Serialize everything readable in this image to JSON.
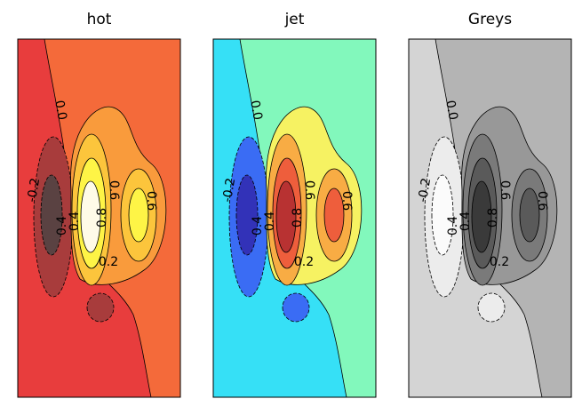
{
  "chart_data": [
    {
      "type": "contour",
      "title": "hot",
      "levels": [
        -0.6,
        -0.4,
        -0.2,
        0,
        0.2,
        0.4,
        0.6,
        0.8,
        1.0
      ],
      "colors": [
        "#5a4242",
        "#a83c3c",
        "#e83d3d",
        "#f46a3a",
        "#f99b3c",
        "#fcc53c",
        "#fef446",
        "#fffbe8"
      ],
      "contour_labels": [
        {
          "value": 0,
          "label": "0.0"
        },
        {
          "value": -0.2,
          "label": "-0.2"
        },
        {
          "value": 0.4,
          "label": "0.4"
        },
        {
          "value": 0.4,
          "label": "0.4"
        },
        {
          "value": 0.8,
          "label": "0.8"
        },
        {
          "value": 0.6,
          "label": "0.6"
        },
        {
          "value": 0.6,
          "label": "0.6"
        },
        {
          "value": 0.2,
          "label": "0.2"
        }
      ]
    },
    {
      "type": "contour",
      "title": "jet",
      "levels": [
        -0.6,
        -0.4,
        -0.2,
        0,
        0.2,
        0.4,
        0.6,
        0.8,
        1.0
      ],
      "colors": [
        "#3232b8",
        "#3a6cf4",
        "#36e0f6",
        "#82f8bc",
        "#f6f262",
        "#f8ac44",
        "#ee5e3c",
        "#b83232"
      ],
      "contour_labels": [
        {
          "value": 0,
          "label": "0.0"
        },
        {
          "value": -0.2,
          "label": "-0.2"
        },
        {
          "value": 0.4,
          "label": "0.4"
        },
        {
          "value": 0.4,
          "label": "0.4"
        },
        {
          "value": 0.8,
          "label": "0.8"
        },
        {
          "value": 0.6,
          "label": "0.6"
        },
        {
          "value": 0.6,
          "label": "0.6"
        },
        {
          "value": 0.2,
          "label": "0.2"
        }
      ]
    },
    {
      "type": "contour",
      "title": "Greys",
      "levels": [
        -0.6,
        -0.4,
        -0.2,
        0,
        0.2,
        0.4,
        0.6,
        0.8,
        1.0
      ],
      "colors": [
        "#fbfbfb",
        "#ececec",
        "#d4d4d4",
        "#b4b4b4",
        "#989898",
        "#7a7a7a",
        "#5a5a5a",
        "#3a3a3a"
      ],
      "contour_labels": [
        {
          "value": 0,
          "label": "0.0"
        },
        {
          "value": -0.2,
          "label": "-0.2"
        },
        {
          "value": 0.4,
          "label": "0.4"
        },
        {
          "value": 0.4,
          "label": "0.4"
        },
        {
          "value": 0.8,
          "label": "0.8"
        },
        {
          "value": 0.6,
          "label": "0.6"
        },
        {
          "value": 0.6,
          "label": "0.6"
        },
        {
          "value": 0.2,
          "label": "0.2"
        }
      ]
    }
  ]
}
